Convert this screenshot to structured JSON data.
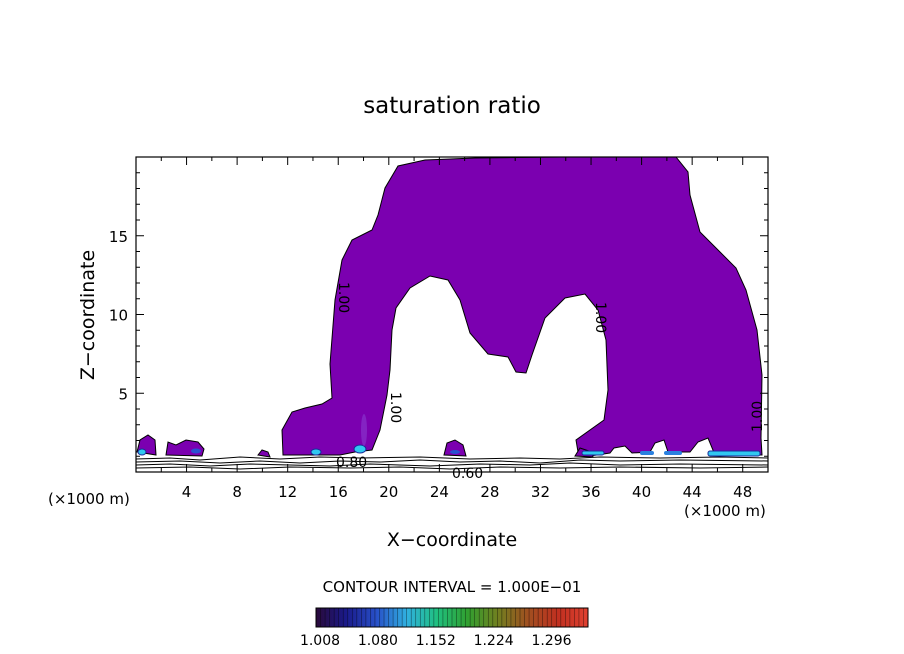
{
  "chart_data": {
    "type": "contour",
    "title": "saturation ratio",
    "xlabel": "X−coordinate",
    "ylabel": "Z−coordinate",
    "x_unit_left": "(×1000 m)",
    "x_unit_right": "(×1000 m)",
    "xlim": [
      0,
      50
    ],
    "ylim": [
      0,
      20
    ],
    "x_ticks": [
      4,
      8,
      12,
      16,
      20,
      24,
      28,
      32,
      36,
      40,
      44,
      48
    ],
    "y_ticks": [
      5,
      10,
      15
    ],
    "contour_interval_text": "CONTOUR INTERVAL = 1.000E−01",
    "contour_labels": [
      {
        "text": "1.00",
        "x": 16.6,
        "z": 13.2,
        "rotation": 90
      },
      {
        "text": "1.00",
        "x": 20.7,
        "z": 4.0,
        "rotation": 90
      },
      {
        "text": "1.00",
        "x": 37.0,
        "z": 10.0,
        "rotation": 90
      },
      {
        "text": "1.00",
        "x": 49.2,
        "z": 3.4,
        "rotation": -90
      },
      {
        "text": "0.80",
        "x": 17.4,
        "z": 0.6,
        "rotation": 0
      },
      {
        "text": "0.60",
        "x": 26.0,
        "z": 0.0,
        "rotation": 0
      }
    ],
    "colorbar": {
      "ticks": [
        "1.008",
        "1.080",
        "1.152",
        "1.224",
        "1.296"
      ],
      "colors": [
        "#2a0a3a",
        "#1a1a8a",
        "#2850c8",
        "#30b0e0",
        "#20c080",
        "#30a030",
        "#708020",
        "#a05020",
        "#c03020",
        "#e04030"
      ]
    },
    "fill_color": "#7b00b0"
  }
}
